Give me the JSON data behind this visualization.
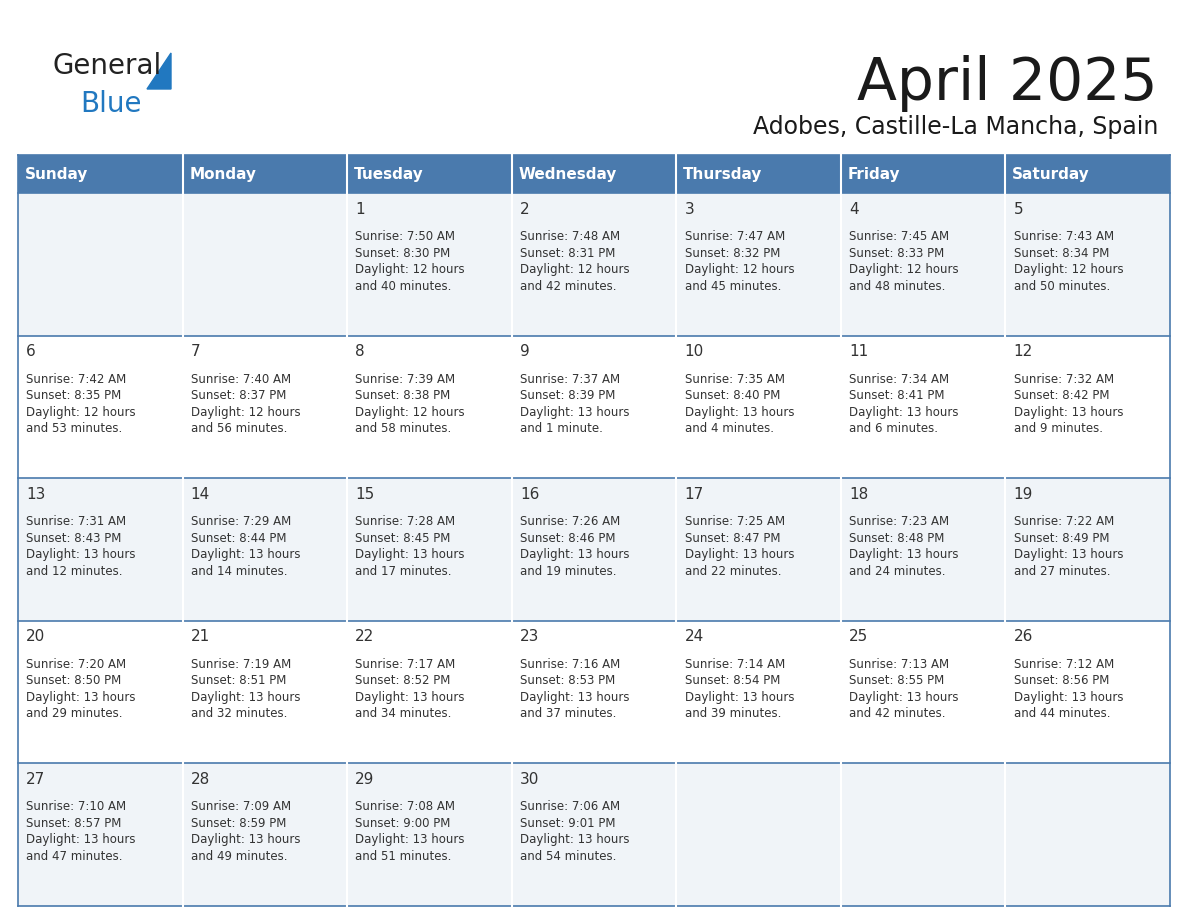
{
  "title": "April 2025",
  "subtitle": "Adobes, Castille-La Mancha, Spain",
  "header_bg": "#4a7aad",
  "header_text_color": "#ffffff",
  "cell_bg_odd": "#f0f4f8",
  "cell_bg_even": "#ffffff",
  "day_headers": [
    "Sunday",
    "Monday",
    "Tuesday",
    "Wednesday",
    "Thursday",
    "Friday",
    "Saturday"
  ],
  "text_color": "#333333",
  "line_color": "#4a7aad",
  "days": [
    {
      "col": 0,
      "row": 0,
      "num": "",
      "sunrise": "",
      "sunset": "",
      "daylight": ""
    },
    {
      "col": 1,
      "row": 0,
      "num": "",
      "sunrise": "",
      "sunset": "",
      "daylight": ""
    },
    {
      "col": 2,
      "row": 0,
      "num": "1",
      "sunrise": "Sunrise: 7:50 AM",
      "sunset": "Sunset: 8:30 PM",
      "daylight": "Daylight: 12 hours\nand 40 minutes."
    },
    {
      "col": 3,
      "row": 0,
      "num": "2",
      "sunrise": "Sunrise: 7:48 AM",
      "sunset": "Sunset: 8:31 PM",
      "daylight": "Daylight: 12 hours\nand 42 minutes."
    },
    {
      "col": 4,
      "row": 0,
      "num": "3",
      "sunrise": "Sunrise: 7:47 AM",
      "sunset": "Sunset: 8:32 PM",
      "daylight": "Daylight: 12 hours\nand 45 minutes."
    },
    {
      "col": 5,
      "row": 0,
      "num": "4",
      "sunrise": "Sunrise: 7:45 AM",
      "sunset": "Sunset: 8:33 PM",
      "daylight": "Daylight: 12 hours\nand 48 minutes."
    },
    {
      "col": 6,
      "row": 0,
      "num": "5",
      "sunrise": "Sunrise: 7:43 AM",
      "sunset": "Sunset: 8:34 PM",
      "daylight": "Daylight: 12 hours\nand 50 minutes."
    },
    {
      "col": 0,
      "row": 1,
      "num": "6",
      "sunrise": "Sunrise: 7:42 AM",
      "sunset": "Sunset: 8:35 PM",
      "daylight": "Daylight: 12 hours\nand 53 minutes."
    },
    {
      "col": 1,
      "row": 1,
      "num": "7",
      "sunrise": "Sunrise: 7:40 AM",
      "sunset": "Sunset: 8:37 PM",
      "daylight": "Daylight: 12 hours\nand 56 minutes."
    },
    {
      "col": 2,
      "row": 1,
      "num": "8",
      "sunrise": "Sunrise: 7:39 AM",
      "sunset": "Sunset: 8:38 PM",
      "daylight": "Daylight: 12 hours\nand 58 minutes."
    },
    {
      "col": 3,
      "row": 1,
      "num": "9",
      "sunrise": "Sunrise: 7:37 AM",
      "sunset": "Sunset: 8:39 PM",
      "daylight": "Daylight: 13 hours\nand 1 minute."
    },
    {
      "col": 4,
      "row": 1,
      "num": "10",
      "sunrise": "Sunrise: 7:35 AM",
      "sunset": "Sunset: 8:40 PM",
      "daylight": "Daylight: 13 hours\nand 4 minutes."
    },
    {
      "col": 5,
      "row": 1,
      "num": "11",
      "sunrise": "Sunrise: 7:34 AM",
      "sunset": "Sunset: 8:41 PM",
      "daylight": "Daylight: 13 hours\nand 6 minutes."
    },
    {
      "col": 6,
      "row": 1,
      "num": "12",
      "sunrise": "Sunrise: 7:32 AM",
      "sunset": "Sunset: 8:42 PM",
      "daylight": "Daylight: 13 hours\nand 9 minutes."
    },
    {
      "col": 0,
      "row": 2,
      "num": "13",
      "sunrise": "Sunrise: 7:31 AM",
      "sunset": "Sunset: 8:43 PM",
      "daylight": "Daylight: 13 hours\nand 12 minutes."
    },
    {
      "col": 1,
      "row": 2,
      "num": "14",
      "sunrise": "Sunrise: 7:29 AM",
      "sunset": "Sunset: 8:44 PM",
      "daylight": "Daylight: 13 hours\nand 14 minutes."
    },
    {
      "col": 2,
      "row": 2,
      "num": "15",
      "sunrise": "Sunrise: 7:28 AM",
      "sunset": "Sunset: 8:45 PM",
      "daylight": "Daylight: 13 hours\nand 17 minutes."
    },
    {
      "col": 3,
      "row": 2,
      "num": "16",
      "sunrise": "Sunrise: 7:26 AM",
      "sunset": "Sunset: 8:46 PM",
      "daylight": "Daylight: 13 hours\nand 19 minutes."
    },
    {
      "col": 4,
      "row": 2,
      "num": "17",
      "sunrise": "Sunrise: 7:25 AM",
      "sunset": "Sunset: 8:47 PM",
      "daylight": "Daylight: 13 hours\nand 22 minutes."
    },
    {
      "col": 5,
      "row": 2,
      "num": "18",
      "sunrise": "Sunrise: 7:23 AM",
      "sunset": "Sunset: 8:48 PM",
      "daylight": "Daylight: 13 hours\nand 24 minutes."
    },
    {
      "col": 6,
      "row": 2,
      "num": "19",
      "sunrise": "Sunrise: 7:22 AM",
      "sunset": "Sunset: 8:49 PM",
      "daylight": "Daylight: 13 hours\nand 27 minutes."
    },
    {
      "col": 0,
      "row": 3,
      "num": "20",
      "sunrise": "Sunrise: 7:20 AM",
      "sunset": "Sunset: 8:50 PM",
      "daylight": "Daylight: 13 hours\nand 29 minutes."
    },
    {
      "col": 1,
      "row": 3,
      "num": "21",
      "sunrise": "Sunrise: 7:19 AM",
      "sunset": "Sunset: 8:51 PM",
      "daylight": "Daylight: 13 hours\nand 32 minutes."
    },
    {
      "col": 2,
      "row": 3,
      "num": "22",
      "sunrise": "Sunrise: 7:17 AM",
      "sunset": "Sunset: 8:52 PM",
      "daylight": "Daylight: 13 hours\nand 34 minutes."
    },
    {
      "col": 3,
      "row": 3,
      "num": "23",
      "sunrise": "Sunrise: 7:16 AM",
      "sunset": "Sunset: 8:53 PM",
      "daylight": "Daylight: 13 hours\nand 37 minutes."
    },
    {
      "col": 4,
      "row": 3,
      "num": "24",
      "sunrise": "Sunrise: 7:14 AM",
      "sunset": "Sunset: 8:54 PM",
      "daylight": "Daylight: 13 hours\nand 39 minutes."
    },
    {
      "col": 5,
      "row": 3,
      "num": "25",
      "sunrise": "Sunrise: 7:13 AM",
      "sunset": "Sunset: 8:55 PM",
      "daylight": "Daylight: 13 hours\nand 42 minutes."
    },
    {
      "col": 6,
      "row": 3,
      "num": "26",
      "sunrise": "Sunrise: 7:12 AM",
      "sunset": "Sunset: 8:56 PM",
      "daylight": "Daylight: 13 hours\nand 44 minutes."
    },
    {
      "col": 0,
      "row": 4,
      "num": "27",
      "sunrise": "Sunrise: 7:10 AM",
      "sunset": "Sunset: 8:57 PM",
      "daylight": "Daylight: 13 hours\nand 47 minutes."
    },
    {
      "col": 1,
      "row": 4,
      "num": "28",
      "sunrise": "Sunrise: 7:09 AM",
      "sunset": "Sunset: 8:59 PM",
      "daylight": "Daylight: 13 hours\nand 49 minutes."
    },
    {
      "col": 2,
      "row": 4,
      "num": "29",
      "sunrise": "Sunrise: 7:08 AM",
      "sunset": "Sunset: 9:00 PM",
      "daylight": "Daylight: 13 hours\nand 51 minutes."
    },
    {
      "col": 3,
      "row": 4,
      "num": "30",
      "sunrise": "Sunrise: 7:06 AM",
      "sunset": "Sunset: 9:01 PM",
      "daylight": "Daylight: 13 hours\nand 54 minutes."
    },
    {
      "col": 4,
      "row": 4,
      "num": "",
      "sunrise": "",
      "sunset": "",
      "daylight": ""
    },
    {
      "col": 5,
      "row": 4,
      "num": "",
      "sunrise": "",
      "sunset": "",
      "daylight": ""
    },
    {
      "col": 6,
      "row": 4,
      "num": "",
      "sunrise": "",
      "sunset": "",
      "daylight": ""
    }
  ],
  "logo_text1": "General",
  "logo_text2": "Blue",
  "logo_color1": "#222222",
  "logo_color2": "#2178c0",
  "title_color": "#1a1a1a"
}
